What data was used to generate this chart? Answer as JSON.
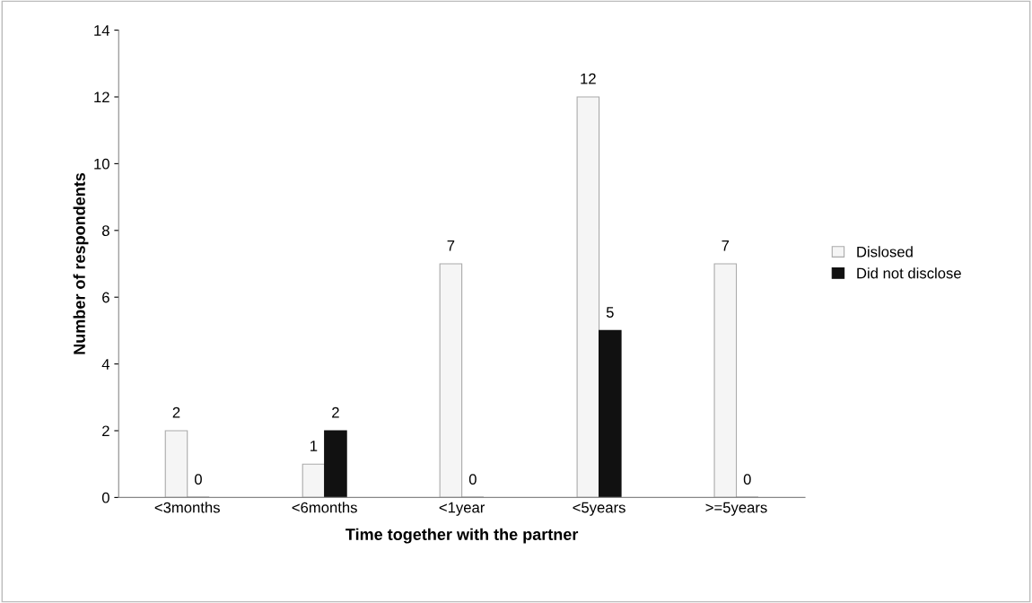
{
  "chart_data": {
    "type": "bar",
    "xlabel": "Time together with the partner",
    "ylabel": "Number of respondents",
    "categories": [
      "<3months",
      "<6months",
      "<1year",
      "<5years",
      ">=5years"
    ],
    "series": [
      {
        "name": "Dislosed",
        "color": "#f5f5f5",
        "values": [
          2,
          1,
          7,
          12,
          7
        ]
      },
      {
        "name": "Did not disclose",
        "color": "#111111",
        "values": [
          0,
          2,
          0,
          5,
          0
        ]
      }
    ],
    "ylim": [
      0,
      14
    ],
    "yticks": [
      0,
      2,
      4,
      6,
      8,
      10,
      12,
      14
    ],
    "grid": false,
    "legend": "right",
    "data_labels": true
  }
}
